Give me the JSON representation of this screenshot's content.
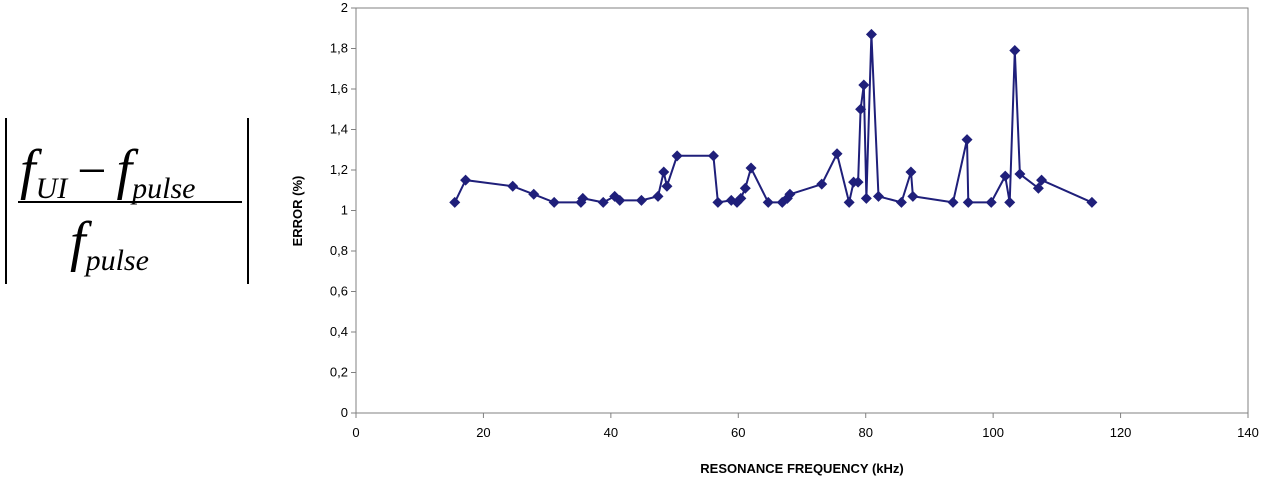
{
  "formula": {
    "term_main": "f",
    "sub_ui": "UI",
    "operator": "−",
    "sub_pulse": "pulse",
    "den_main": "f",
    "den_sub": "pulse"
  },
  "chart_data": {
    "type": "line",
    "xlabel": "RESONANCE FREQUENCY (kHz)",
    "ylabel": "ERROR (%)",
    "xlim": [
      0,
      140
    ],
    "ylim": [
      0,
      2
    ],
    "xticks": [
      "0",
      "20",
      "40",
      "60",
      "80",
      "100",
      "120",
      "140"
    ],
    "yticks": [
      "0",
      "0,2",
      "0,4",
      "0,6",
      "0,8",
      "1",
      "1,2",
      "1,4",
      "1,6",
      "1,8",
      "2"
    ],
    "grid": false,
    "marker": "diamond",
    "color": "#1f1f7a",
    "x": [
      15.5,
      17.2,
      24.6,
      27.9,
      31.1,
      35.3,
      35.6,
      38.8,
      40.6,
      41.4,
      44.8,
      47.4,
      48.3,
      48.8,
      50.4,
      56.1,
      56.8,
      58.9,
      59.8,
      60.4,
      61.1,
      62.0,
      64.7,
      66.9,
      67.7,
      68.1,
      73.1,
      75.5,
      77.4,
      78.1,
      78.8,
      79.2,
      79.7,
      80.1,
      80.9,
      82.0,
      85.6,
      87.1,
      87.4,
      93.7,
      95.9,
      96.1,
      99.7,
      101.9,
      102.6,
      103.4,
      104.2,
      107.1,
      107.6,
      115.5
    ],
    "values": [
      1.04,
      1.15,
      1.12,
      1.08,
      1.04,
      1.04,
      1.06,
      1.04,
      1.07,
      1.05,
      1.05,
      1.07,
      1.19,
      1.12,
      1.27,
      1.27,
      1.04,
      1.05,
      1.04,
      1.06,
      1.11,
      1.21,
      1.04,
      1.04,
      1.06,
      1.08,
      1.13,
      1.28,
      1.04,
      1.14,
      1.14,
      1.5,
      1.62,
      1.06,
      1.87,
      1.07,
      1.04,
      1.19,
      1.07,
      1.04,
      1.35,
      1.04,
      1.04,
      1.17,
      1.04,
      1.79,
      1.18,
      1.11,
      1.15,
      1.04
    ]
  }
}
